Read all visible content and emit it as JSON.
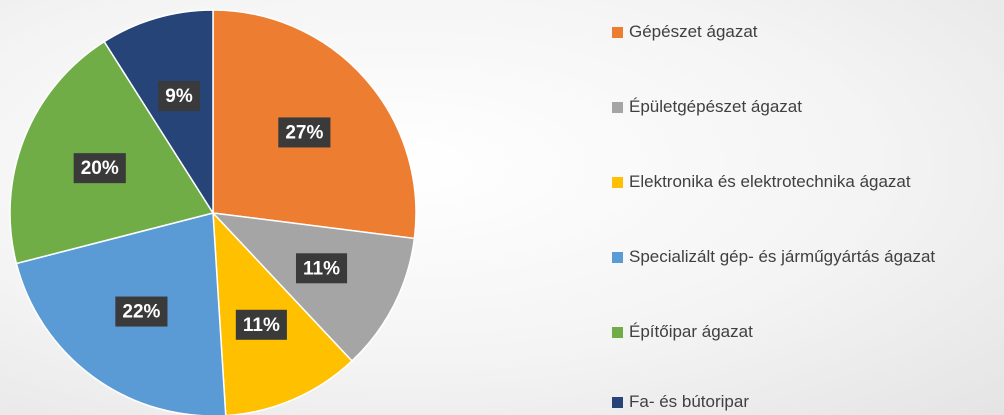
{
  "chart_data": {
    "type": "pie",
    "categories": [
      "Gépészet ágazat",
      "Épületgépészet ágazat",
      "Elektronika és elektrotechnika ágazat",
      "Specializált gép- és járműgyártás ágazat",
      "Építőipar ágazat",
      "Fa- és bútoripar"
    ],
    "values": [
      27,
      11,
      11,
      22,
      20,
      9
    ],
    "value_labels": [
      "27%",
      "11%",
      "11%",
      "22%",
      "20%",
      "9%"
    ],
    "colors": [
      "#ED7D31",
      "#A5A5A5",
      "#FFC000",
      "#5B9BD5",
      "#70AD47",
      "#264478"
    ]
  }
}
